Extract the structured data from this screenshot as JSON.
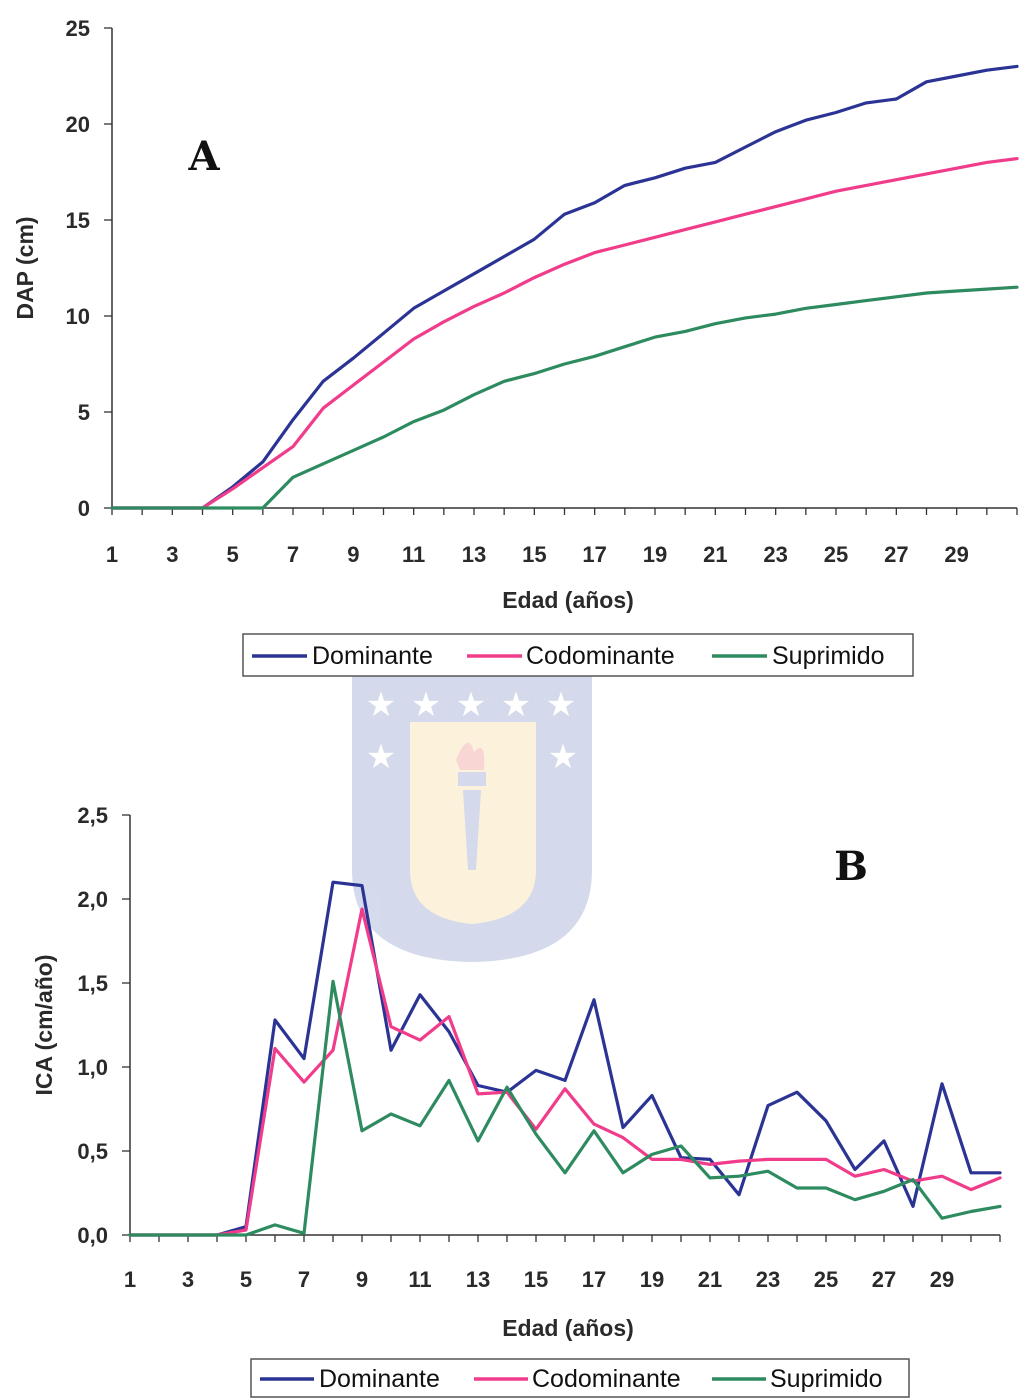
{
  "colors": {
    "Dominante": "#2b3494",
    "Codominante": "#f03c8a",
    "Suprimido": "#2e8b60",
    "axis": "#333333"
  },
  "watermark": {
    "icon": "university-crest-watermark"
  },
  "chart_data": [
    {
      "type": "line",
      "panel_label": "A",
      "xlabel": "Edad (años)",
      "ylabel": "DAP (cm)",
      "ylim": [
        0,
        25
      ],
      "yticks": [
        "0",
        "5",
        "10",
        "15",
        "20",
        "25"
      ],
      "xlim": [
        1,
        31
      ],
      "xticks": [
        "1",
        "3",
        "5",
        "7",
        "9",
        "11",
        "13",
        "15",
        "17",
        "19",
        "21",
        "23",
        "25",
        "27",
        "29"
      ],
      "legend_position": "bottom",
      "x": [
        1,
        2,
        3,
        4,
        5,
        6,
        7,
        8,
        9,
        10,
        11,
        12,
        13,
        14,
        15,
        16,
        17,
        18,
        19,
        20,
        21,
        22,
        23,
        24,
        25,
        26,
        27,
        28,
        29,
        30,
        31
      ],
      "series": [
        {
          "name": "Dominante",
          "values": [
            0,
            0,
            0,
            0,
            1.1,
            2.4,
            4.6,
            6.6,
            7.8,
            9.1,
            10.4,
            11.3,
            12.2,
            13.1,
            14.0,
            15.3,
            15.9,
            16.8,
            17.2,
            17.7,
            18.0,
            18.8,
            19.6,
            20.2,
            20.6,
            21.1,
            21.3,
            22.2,
            22.5,
            22.8,
            23.0
          ]
        },
        {
          "name": "Codominante",
          "values": [
            0,
            0,
            0,
            0,
            1.0,
            2.1,
            3.2,
            5.2,
            6.4,
            7.6,
            8.8,
            9.7,
            10.5,
            11.2,
            12.0,
            12.7,
            13.3,
            13.7,
            14.1,
            14.5,
            14.9,
            15.3,
            15.7,
            16.1,
            16.5,
            16.8,
            17.1,
            17.4,
            17.7,
            18.0,
            18.2
          ]
        },
        {
          "name": "Suprimido",
          "values": [
            0,
            0,
            0,
            0,
            0,
            0,
            1.6,
            2.3,
            3.0,
            3.7,
            4.5,
            5.1,
            5.9,
            6.6,
            7.0,
            7.5,
            7.9,
            8.4,
            8.9,
            9.2,
            9.6,
            9.9,
            10.1,
            10.4,
            10.6,
            10.8,
            11.0,
            11.2,
            11.3,
            11.4,
            11.5
          ]
        }
      ]
    },
    {
      "type": "line",
      "panel_label": "B",
      "xlabel": "Edad (años)",
      "ylabel": "ICA (cm/año)",
      "ylim": [
        0,
        2.5
      ],
      "yticks": [
        "0,0",
        "0,5",
        "1,0",
        "1,5",
        "2,0",
        "2,5"
      ],
      "xlim": [
        1,
        31
      ],
      "xticks": [
        "1",
        "3",
        "5",
        "7",
        "9",
        "11",
        "13",
        "15",
        "17",
        "19",
        "21",
        "23",
        "25",
        "27",
        "29"
      ],
      "legend_position": "bottom",
      "x": [
        1,
        2,
        3,
        4,
        5,
        6,
        7,
        8,
        9,
        10,
        11,
        12,
        13,
        14,
        15,
        16,
        17,
        18,
        19,
        20,
        21,
        22,
        23,
        24,
        25,
        26,
        27,
        28,
        29,
        30,
        31
      ],
      "series": [
        {
          "name": "Dominante",
          "values": [
            0,
            0,
            0,
            0,
            0.05,
            1.28,
            1.05,
            2.1,
            2.08,
            1.1,
            1.43,
            1.21,
            0.89,
            0.85,
            0.98,
            0.92,
            1.4,
            0.64,
            0.83,
            0.46,
            0.45,
            0.24,
            0.77,
            0.85,
            0.68,
            0.39,
            0.56,
            0.17,
            0.9,
            0.37,
            0.37
          ]
        },
        {
          "name": "Codominante",
          "values": [
            0,
            0,
            0,
            0,
            0.03,
            1.11,
            0.91,
            1.1,
            1.94,
            1.24,
            1.16,
            1.3,
            0.84,
            0.85,
            0.63,
            0.87,
            0.66,
            0.58,
            0.45,
            0.45,
            0.42,
            0.44,
            0.45,
            0.45,
            0.45,
            0.35,
            0.39,
            0.32,
            0.35,
            0.27,
            0.34
          ]
        },
        {
          "name": "Suprimido",
          "values": [
            0,
            0,
            0,
            0,
            0,
            0.06,
            0.01,
            1.51,
            0.62,
            0.72,
            0.65,
            0.92,
            0.56,
            0.88,
            0.6,
            0.37,
            0.62,
            0.37,
            0.48,
            0.53,
            0.34,
            0.35,
            0.38,
            0.28,
            0.28,
            0.21,
            0.26,
            0.33,
            0.1,
            0.14,
            0.17
          ]
        }
      ]
    }
  ]
}
